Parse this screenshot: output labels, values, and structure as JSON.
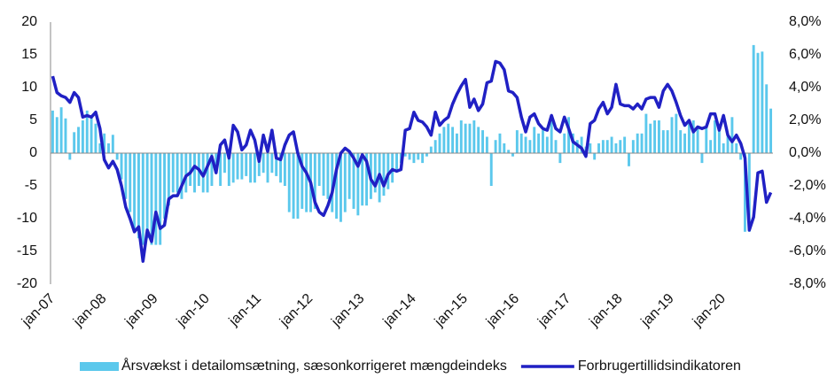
{
  "chart_data": {
    "type": "bar_line",
    "categories": [
      "jan-07",
      null,
      null,
      null,
      null,
      null,
      null,
      null,
      null,
      null,
      null,
      null,
      "jan-08",
      null,
      null,
      null,
      null,
      null,
      null,
      null,
      null,
      null,
      null,
      null,
      "jan-09",
      null,
      null,
      null,
      null,
      null,
      null,
      null,
      null,
      null,
      null,
      null,
      "jan-10",
      null,
      null,
      null,
      null,
      null,
      null,
      null,
      null,
      null,
      null,
      null,
      "jan-11",
      null,
      null,
      null,
      null,
      null,
      null,
      null,
      null,
      null,
      null,
      null,
      "jan-12",
      null,
      null,
      null,
      null,
      null,
      null,
      null,
      null,
      null,
      null,
      null,
      "jan-13",
      null,
      null,
      null,
      null,
      null,
      null,
      null,
      null,
      null,
      null,
      null,
      "jan-14",
      null,
      null,
      null,
      null,
      null,
      null,
      null,
      null,
      null,
      null,
      null,
      "jan-15",
      null,
      null,
      null,
      null,
      null,
      null,
      null,
      null,
      null,
      null,
      null,
      "jan-16",
      null,
      null,
      null,
      null,
      null,
      null,
      null,
      null,
      null,
      null,
      null,
      "jan-17",
      null,
      null,
      null,
      null,
      null,
      null,
      null,
      null,
      null,
      null,
      null,
      "jan-18",
      null,
      null,
      null,
      null,
      null,
      null,
      null,
      null,
      null,
      null,
      null,
      "jan-19",
      null,
      null,
      null,
      null,
      null,
      null,
      null,
      null,
      null,
      null,
      null,
      "jan-20",
      null,
      null,
      null,
      null,
      null,
      null,
      null,
      null,
      null,
      null,
      null
    ],
    "series": [
      {
        "name": "Årsvækst i detailomsætning, sæsonkorrigeret mængdeindeks",
        "type": "bar",
        "color": "#5bc8ec",
        "values": [
          6.5,
          5.5,
          7.0,
          5.3,
          -1,
          3.2,
          4.0,
          5.0,
          6.5,
          5.5,
          4.5,
          1.5,
          3.0,
          1.5,
          2.8,
          -1.0,
          -4.0,
          -7.0,
          -9.0,
          -12,
          -13,
          -14,
          -13,
          -14,
          -14,
          -14,
          -10,
          -8,
          -6,
          -6,
          -7,
          -6,
          -5,
          -6,
          -5,
          -6,
          -6,
          -5,
          -3,
          -5,
          -3,
          -5,
          -4.5,
          -4,
          -4,
          -3.5,
          -4.5,
          -4.5,
          -3.5,
          -3,
          -4.5,
          -3,
          -3.5,
          -4.5,
          -5,
          -9,
          -10,
          -10,
          -8.5,
          -9,
          -9,
          -8.5,
          -5,
          -6.5,
          -7,
          -9,
          -10,
          -10.5,
          -9,
          -7,
          -8.5,
          -9.5,
          -8,
          -8,
          -7,
          -6,
          -7.5,
          -6.5,
          -5.5,
          -4.5,
          -2.5,
          -1.5,
          -0.5,
          -1,
          -1.5,
          -1,
          -1.5,
          -0.5,
          1,
          2,
          3,
          4,
          4.5,
          4,
          3,
          5,
          4.5,
          4.5,
          5.0,
          4.0,
          3.5,
          2.5,
          -5,
          2,
          3,
          1.5,
          0.5,
          -0.5,
          3.5,
          3,
          2.5,
          2.0,
          4,
          3,
          3.5,
          2.5,
          5.5,
          2,
          -1.5,
          3,
          5.5,
          3,
          2,
          2.5,
          1,
          1.5,
          -1,
          1.5,
          2,
          2,
          2.5,
          1.5,
          2,
          2.5,
          -2,
          2,
          3,
          3,
          6,
          4.5,
          5,
          5,
          3.5,
          3.5,
          5.5,
          6,
          3.5,
          3,
          4.5,
          5,
          4,
          -1.5,
          4,
          2,
          5,
          4,
          1.5,
          2.5,
          5.5,
          1.5,
          -1,
          -12,
          -12,
          16.5,
          15.3,
          15.5,
          10.5,
          6.8
        ]
      },
      {
        "name": "Forbrugertillidsindikatoren",
        "type": "line",
        "axis": "y2",
        "color": "#2020c4",
        "values": [
          4.7,
          3.7,
          3.5,
          3.4,
          3.1,
          3.7,
          3.4,
          2.2,
          2.3,
          2.2,
          2.5,
          1.5,
          -0.4,
          -0.9,
          -0.5,
          -1.0,
          -2.0,
          -3.3,
          -4.0,
          -4.8,
          -4.5,
          -6.6,
          -4.7,
          -5.4,
          -3.6,
          -4.6,
          -4.4,
          -2.8,
          -2.6,
          -2.6,
          -2.0,
          -1.4,
          -1.2,
          -0.8,
          -1.0,
          -1.4,
          -0.8,
          -0.2,
          -1.2,
          0.5,
          0.8,
          -0.3,
          1.7,
          1.3,
          0.2,
          0.5,
          1.4,
          0.8,
          -0.5,
          1.1,
          0.1,
          1.4,
          -0.3,
          -0.4,
          0.5,
          1.1,
          1.3,
          0.0,
          -0.8,
          -1.2,
          -1.8,
          -3.0,
          -3.6,
          -3.8,
          -3.2,
          -2.4,
          -1.0,
          0.0,
          0.3,
          0.1,
          -0.3,
          -0.8,
          -0.1,
          -0.5,
          -1.6,
          -2.0,
          -1.3,
          -2.0,
          -1.3,
          -1.0,
          -1.1,
          -1.0,
          1.4,
          1.5,
          2.5,
          2.0,
          1.9,
          1.6,
          1.1,
          2.5,
          1.7,
          2.0,
          2.2,
          3.0,
          3.6,
          4.1,
          4.5,
          2.8,
          3.3,
          2.6,
          3.0,
          4.3,
          4.4,
          5.6,
          5.5,
          5.1,
          3.8,
          3.7,
          3.4,
          2.2,
          1.3,
          2.2,
          2.4,
          1.8,
          1.5,
          1.4,
          2.3,
          1.5,
          1.3,
          2.2,
          1.5,
          0.7,
          0.5,
          0.3,
          -0.2,
          1.8,
          2.0,
          2.7,
          3.1,
          2.4,
          2.8,
          4.2,
          3.0,
          2.9,
          2.9,
          2.7,
          3.0,
          2.7,
          3.3,
          3.4,
          3.4,
          2.8,
          3.8,
          4.2,
          3.8,
          3.1,
          2.3,
          1.7,
          2.0,
          1.3,
          1.6,
          1.5,
          1.6,
          2.4,
          2.4,
          1.4,
          2.3,
          1.1,
          0.7,
          1.1,
          0.6,
          -0.3,
          -4.7,
          -3.9,
          -1.2,
          -1.1,
          -3.0,
          -2.4
        ]
      }
    ],
    "ylim": [
      -20,
      20
    ],
    "yticks": [
      -20,
      -15,
      -10,
      -5,
      0,
      5,
      10,
      15,
      20
    ],
    "y2lim": [
      -8,
      8
    ],
    "y2ticks": [
      {
        "value": -8,
        "label": "-8,0%"
      },
      {
        "value": -6,
        "label": "-6,0%"
      },
      {
        "value": -4,
        "label": "-4,0%"
      },
      {
        "value": -2,
        "label": "-2,0%"
      },
      {
        "value": 0,
        "label": "0,0%"
      },
      {
        "value": 2,
        "label": "2,0%"
      },
      {
        "value": 4,
        "label": "4,0%"
      },
      {
        "value": 6,
        "label": "6,0%"
      },
      {
        "value": 8,
        "label": "8,0%"
      }
    ],
    "legend": "bottom"
  }
}
